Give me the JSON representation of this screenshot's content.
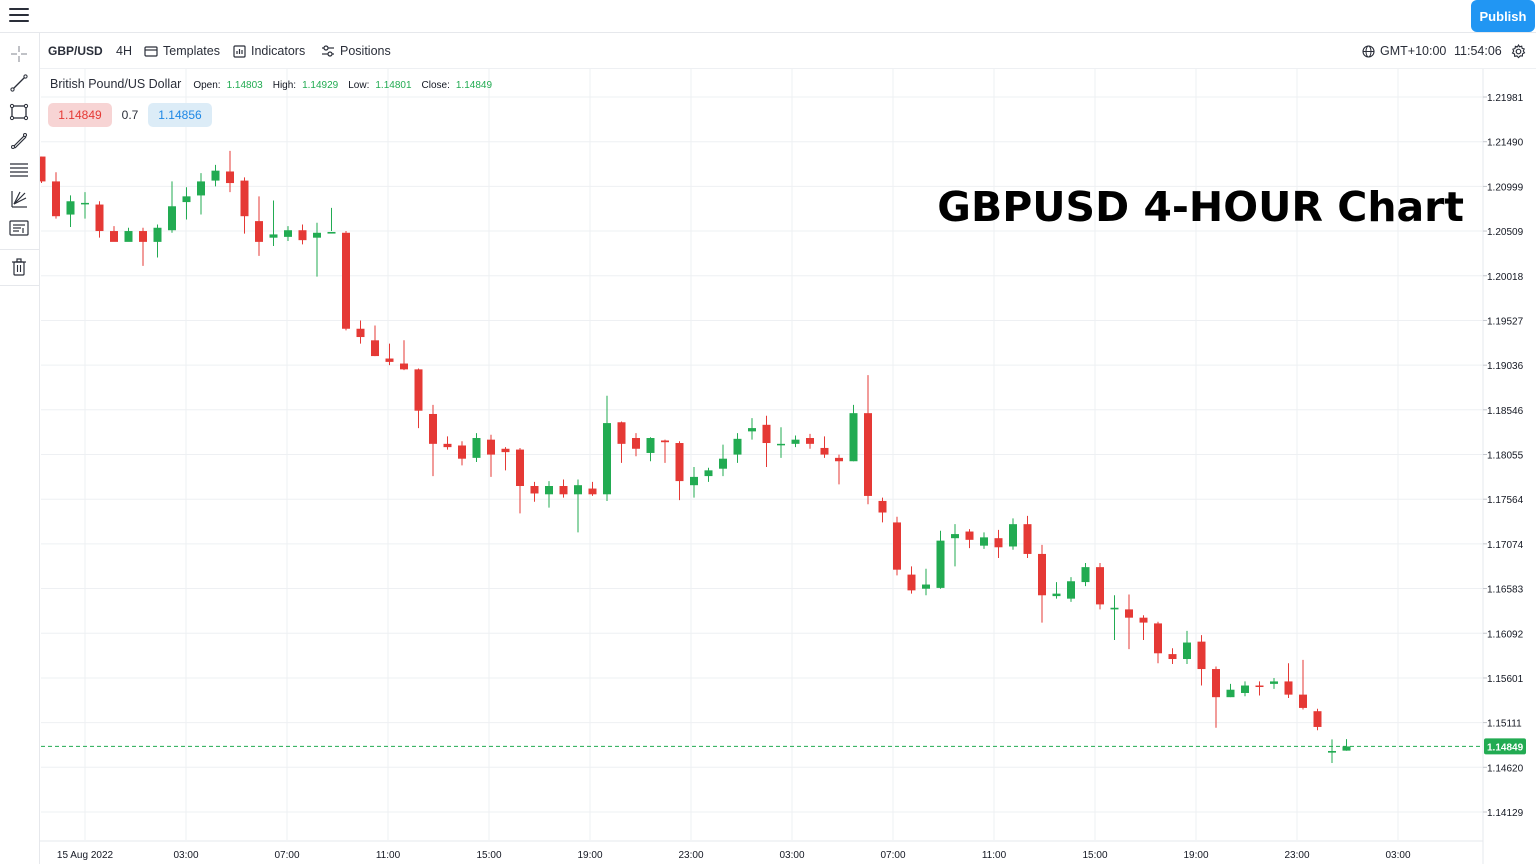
{
  "window": {
    "publish_label": "Publish"
  },
  "toolbar": {
    "symbol": "GBP/USD",
    "interval": "4H",
    "templates_label": "Templates",
    "indicators_label": "Indicators",
    "positions_label": "Positions",
    "timezone": "GMT+10:00",
    "clock": "11:54:06"
  },
  "legend": {
    "instrument_name": "British Pound/US Dollar",
    "open_label": "Open:",
    "open_value": "1.14803",
    "high_label": "High:",
    "high_value": "1.14929",
    "low_label": "Low:",
    "low_value": "1.14801",
    "close_label": "Close:",
    "close_value": "1.14849"
  },
  "trade": {
    "sell_price": "1.14849",
    "spread": "0.7",
    "buy_price": "1.14856"
  },
  "overlay_text": "GBPUSD 4-HOUR Chart",
  "colors": {
    "up": "#22ab52",
    "down": "#e53935",
    "grid": "#eef0f3",
    "accent": "#2196f3",
    "price_line": "#22ab52"
  },
  "sidebar_icons": [
    "crosshair-icon",
    "trend-line-icon",
    "rectangle-icon",
    "fib-icon",
    "channel-icon",
    "pitchfork-icon",
    "text-note-icon",
    "trash-icon"
  ],
  "chart_data": {
    "type": "candlestick",
    "title": "GBPUSD 4-HOUR Chart",
    "ylim": [
      1.13885,
      1.22226
    ],
    "y_ticks": [
      "1.21981",
      "1.21490",
      "1.20999",
      "1.20509",
      "1.20018",
      "1.19527",
      "1.19036",
      "1.18546",
      "1.18055",
      "1.17564",
      "1.17074",
      "1.16583",
      "1.16092",
      "1.15601",
      "1.15111",
      "1.14620",
      "1.14129"
    ],
    "x_ticks": [
      "15 Aug 2022",
      "03:00",
      "07:00",
      "11:00",
      "15:00",
      "19:00",
      "23:00",
      "03:00",
      "07:00",
      "11:00",
      "15:00",
      "19:00",
      "23:00",
      "03:00"
    ],
    "current_price": "1.14849",
    "grid": true,
    "candles": [
      {
        "o": 1.21327,
        "h": 1.21327,
        "l": 1.21036,
        "c": 1.21054
      },
      {
        "o": 1.21054,
        "h": 1.21154,
        "l": 1.20645,
        "c": 1.20672
      },
      {
        "o": 1.2069,
        "h": 1.209,
        "l": 1.20554,
        "c": 1.20836
      },
      {
        "o": 1.20818,
        "h": 1.20936,
        "l": 1.20645,
        "c": 1.20818
      },
      {
        "o": 1.208,
        "h": 1.20836,
        "l": 1.20436,
        "c": 1.20509
      },
      {
        "o": 1.20509,
        "h": 1.20563,
        "l": 1.204,
        "c": 1.2039
      },
      {
        "o": 1.2039,
        "h": 1.20545,
        "l": 1.20399,
        "c": 1.20509
      },
      {
        "o": 1.20509,
        "h": 1.20545,
        "l": 1.20127,
        "c": 1.2039
      },
      {
        "o": 1.2039,
        "h": 1.20581,
        "l": 1.20218,
        "c": 1.20545
      },
      {
        "o": 1.20518,
        "h": 1.21054,
        "l": 1.2049,
        "c": 1.20781
      },
      {
        "o": 1.20827,
        "h": 1.2099,
        "l": 1.20636,
        "c": 1.2089
      },
      {
        "o": 1.209,
        "h": 1.21145,
        "l": 1.2069,
        "c": 1.21054
      },
      {
        "o": 1.21063,
        "h": 1.21236,
        "l": 1.20999,
        "c": 1.21172
      },
      {
        "o": 1.21163,
        "h": 1.2139,
        "l": 1.20936,
        "c": 1.21036
      },
      {
        "o": 1.21063,
        "h": 1.21099,
        "l": 1.20481,
        "c": 1.20672
      },
      {
        "o": 1.20618,
        "h": 1.2089,
        "l": 1.20236,
        "c": 1.2039
      },
      {
        "o": 1.20436,
        "h": 1.20845,
        "l": 1.20345,
        "c": 1.20472
      },
      {
        "o": 1.20445,
        "h": 1.20563,
        "l": 1.204,
        "c": 1.20518
      },
      {
        "o": 1.20518,
        "h": 1.20581,
        "l": 1.20363,
        "c": 1.20409
      },
      {
        "o": 1.20436,
        "h": 1.206,
        "l": 1.20009,
        "c": 1.2049
      },
      {
        "o": 1.20481,
        "h": 1.20763,
        "l": 1.20509,
        "c": 1.20499
      },
      {
        "o": 1.2049,
        "h": 1.20509,
        "l": 1.19418,
        "c": 1.19436
      },
      {
        "o": 1.19436,
        "h": 1.19527,
        "l": 1.19272,
        "c": 1.19345
      },
      {
        "o": 1.19309,
        "h": 1.19472,
        "l": 1.19136,
        "c": 1.19136
      },
      {
        "o": 1.19109,
        "h": 1.19272,
        "l": 1.19036,
        "c": 1.19072
      },
      {
        "o": 1.19054,
        "h": 1.19309,
        "l": 1.18981,
        "c": 1.1899
      },
      {
        "o": 1.1899,
        "h": 1.19,
        "l": 1.18345,
        "c": 1.18536
      },
      {
        "o": 1.185,
        "h": 1.186,
        "l": 1.17818,
        "c": 1.18172
      },
      {
        "o": 1.18172,
        "h": 1.18254,
        "l": 1.18109,
        "c": 1.18136
      },
      {
        "o": 1.18154,
        "h": 1.182,
        "l": 1.17936,
        "c": 1.18009
      },
      {
        "o": 1.18018,
        "h": 1.1829,
        "l": 1.17972,
        "c": 1.18236
      },
      {
        "o": 1.18218,
        "h": 1.18272,
        "l": 1.17809,
        "c": 1.18054
      },
      {
        "o": 1.18118,
        "h": 1.18136,
        "l": 1.17881,
        "c": 1.18081
      },
      {
        "o": 1.18109,
        "h": 1.18127,
        "l": 1.17409,
        "c": 1.17709
      },
      {
        "o": 1.17709,
        "h": 1.17754,
        "l": 1.17536,
        "c": 1.17627
      },
      {
        "o": 1.17618,
        "h": 1.17763,
        "l": 1.17472,
        "c": 1.17709
      },
      {
        "o": 1.17709,
        "h": 1.17781,
        "l": 1.17581,
        "c": 1.17618
      },
      {
        "o": 1.17618,
        "h": 1.17781,
        "l": 1.172,
        "c": 1.17718
      },
      {
        "o": 1.17681,
        "h": 1.17754,
        "l": 1.176,
        "c": 1.17618
      },
      {
        "o": 1.17618,
        "h": 1.187,
        "l": 1.17545,
        "c": 1.184
      },
      {
        "o": 1.18409,
        "h": 1.18418,
        "l": 1.17963,
        "c": 1.18172
      },
      {
        "o": 1.18236,
        "h": 1.1829,
        "l": 1.18036,
        "c": 1.18118
      },
      {
        "o": 1.18072,
        "h": 1.18245,
        "l": 1.17981,
        "c": 1.18236
      },
      {
        "o": 1.18209,
        "h": 1.18218,
        "l": 1.17963,
        "c": 1.1819
      },
      {
        "o": 1.18181,
        "h": 1.182,
        "l": 1.17554,
        "c": 1.17763
      },
      {
        "o": 1.17718,
        "h": 1.17918,
        "l": 1.17581,
        "c": 1.17809
      },
      {
        "o": 1.17818,
        "h": 1.17909,
        "l": 1.17754,
        "c": 1.17881
      },
      {
        "o": 1.17899,
        "h": 1.18163,
        "l": 1.17818,
        "c": 1.18009
      },
      {
        "o": 1.18054,
        "h": 1.1829,
        "l": 1.17963,
        "c": 1.18227
      },
      {
        "o": 1.18309,
        "h": 1.18454,
        "l": 1.18218,
        "c": 1.18345
      },
      {
        "o": 1.18381,
        "h": 1.18481,
        "l": 1.17918,
        "c": 1.18181
      },
      {
        "o": 1.18172,
        "h": 1.18354,
        "l": 1.18018,
        "c": 1.18172
      },
      {
        "o": 1.18172,
        "h": 1.18263,
        "l": 1.18136,
        "c": 1.18218
      },
      {
        "o": 1.18236,
        "h": 1.18281,
        "l": 1.18118,
        "c": 1.18172
      },
      {
        "o": 1.18127,
        "h": 1.18254,
        "l": 1.18018,
        "c": 1.18054
      },
      {
        "o": 1.18018,
        "h": 1.18054,
        "l": 1.17727,
        "c": 1.17981
      },
      {
        "o": 1.17981,
        "h": 1.186,
        "l": 1.17981,
        "c": 1.18509
      },
      {
        "o": 1.18509,
        "h": 1.18927,
        "l": 1.17509,
        "c": 1.176
      },
      {
        "o": 1.17545,
        "h": 1.17581,
        "l": 1.17309,
        "c": 1.17418
      },
      {
        "o": 1.17309,
        "h": 1.17372,
        "l": 1.16727,
        "c": 1.1679
      },
      {
        "o": 1.16736,
        "h": 1.16827,
        "l": 1.16527,
        "c": 1.16563
      },
      {
        "o": 1.16581,
        "h": 1.168,
        "l": 1.16509,
        "c": 1.16627
      },
      {
        "o": 1.1659,
        "h": 1.17218,
        "l": 1.16581,
        "c": 1.17109
      },
      {
        "o": 1.17136,
        "h": 1.1729,
        "l": 1.16827,
        "c": 1.17181
      },
      {
        "o": 1.17209,
        "h": 1.17236,
        "l": 1.17027,
        "c": 1.17118
      },
      {
        "o": 1.17054,
        "h": 1.172,
        "l": 1.17018,
        "c": 1.17145
      },
      {
        "o": 1.17136,
        "h": 1.17227,
        "l": 1.16918,
        "c": 1.17036
      },
      {
        "o": 1.17045,
        "h": 1.17354,
        "l": 1.17009,
        "c": 1.1729
      },
      {
        "o": 1.1729,
        "h": 1.17381,
        "l": 1.16918,
        "c": 1.16963
      },
      {
        "o": 1.16963,
        "h": 1.17063,
        "l": 1.16209,
        "c": 1.16509
      },
      {
        "o": 1.165,
        "h": 1.16654,
        "l": 1.16472,
        "c": 1.16527
      },
      {
        "o": 1.16472,
        "h": 1.16709,
        "l": 1.16436,
        "c": 1.16663
      },
      {
        "o": 1.16654,
        "h": 1.16863,
        "l": 1.16609,
        "c": 1.16818
      },
      {
        "o": 1.16818,
        "h": 1.16863,
        "l": 1.16354,
        "c": 1.16409
      },
      {
        "o": 1.16354,
        "h": 1.16509,
        "l": 1.16018,
        "c": 1.16372
      },
      {
        "o": 1.16354,
        "h": 1.16518,
        "l": 1.15918,
        "c": 1.16263
      },
      {
        "o": 1.16263,
        "h": 1.1629,
        "l": 1.16018,
        "c": 1.16209
      },
      {
        "o": 1.162,
        "h": 1.16218,
        "l": 1.15763,
        "c": 1.15872
      },
      {
        "o": 1.15863,
        "h": 1.15927,
        "l": 1.15754,
        "c": 1.15809
      },
      {
        "o": 1.15809,
        "h": 1.16118,
        "l": 1.15754,
        "c": 1.1599
      },
      {
        "o": 1.16,
        "h": 1.16072,
        "l": 1.15518,
        "c": 1.15699
      },
      {
        "o": 1.15699,
        "h": 1.15727,
        "l": 1.15054,
        "c": 1.1539
      },
      {
        "o": 1.1539,
        "h": 1.15536,
        "l": 1.1539,
        "c": 1.15472
      },
      {
        "o": 1.15436,
        "h": 1.15563,
        "l": 1.154,
        "c": 1.15518
      },
      {
        "o": 1.15518,
        "h": 1.15563,
        "l": 1.15409,
        "c": 1.15509
      },
      {
        "o": 1.15536,
        "h": 1.156,
        "l": 1.15481,
        "c": 1.15563
      },
      {
        "o": 1.15563,
        "h": 1.15763,
        "l": 1.15381,
        "c": 1.15418
      },
      {
        "o": 1.15418,
        "h": 1.158,
        "l": 1.15254,
        "c": 1.15272
      },
      {
        "o": 1.15236,
        "h": 1.15263,
        "l": 1.15027,
        "c": 1.15063
      },
      {
        "o": 1.14781,
        "h": 1.14927,
        "l": 1.14667,
        "c": 1.14799
      },
      {
        "o": 1.14803,
        "h": 1.14929,
        "l": 1.14801,
        "c": 1.14849
      }
    ]
  }
}
